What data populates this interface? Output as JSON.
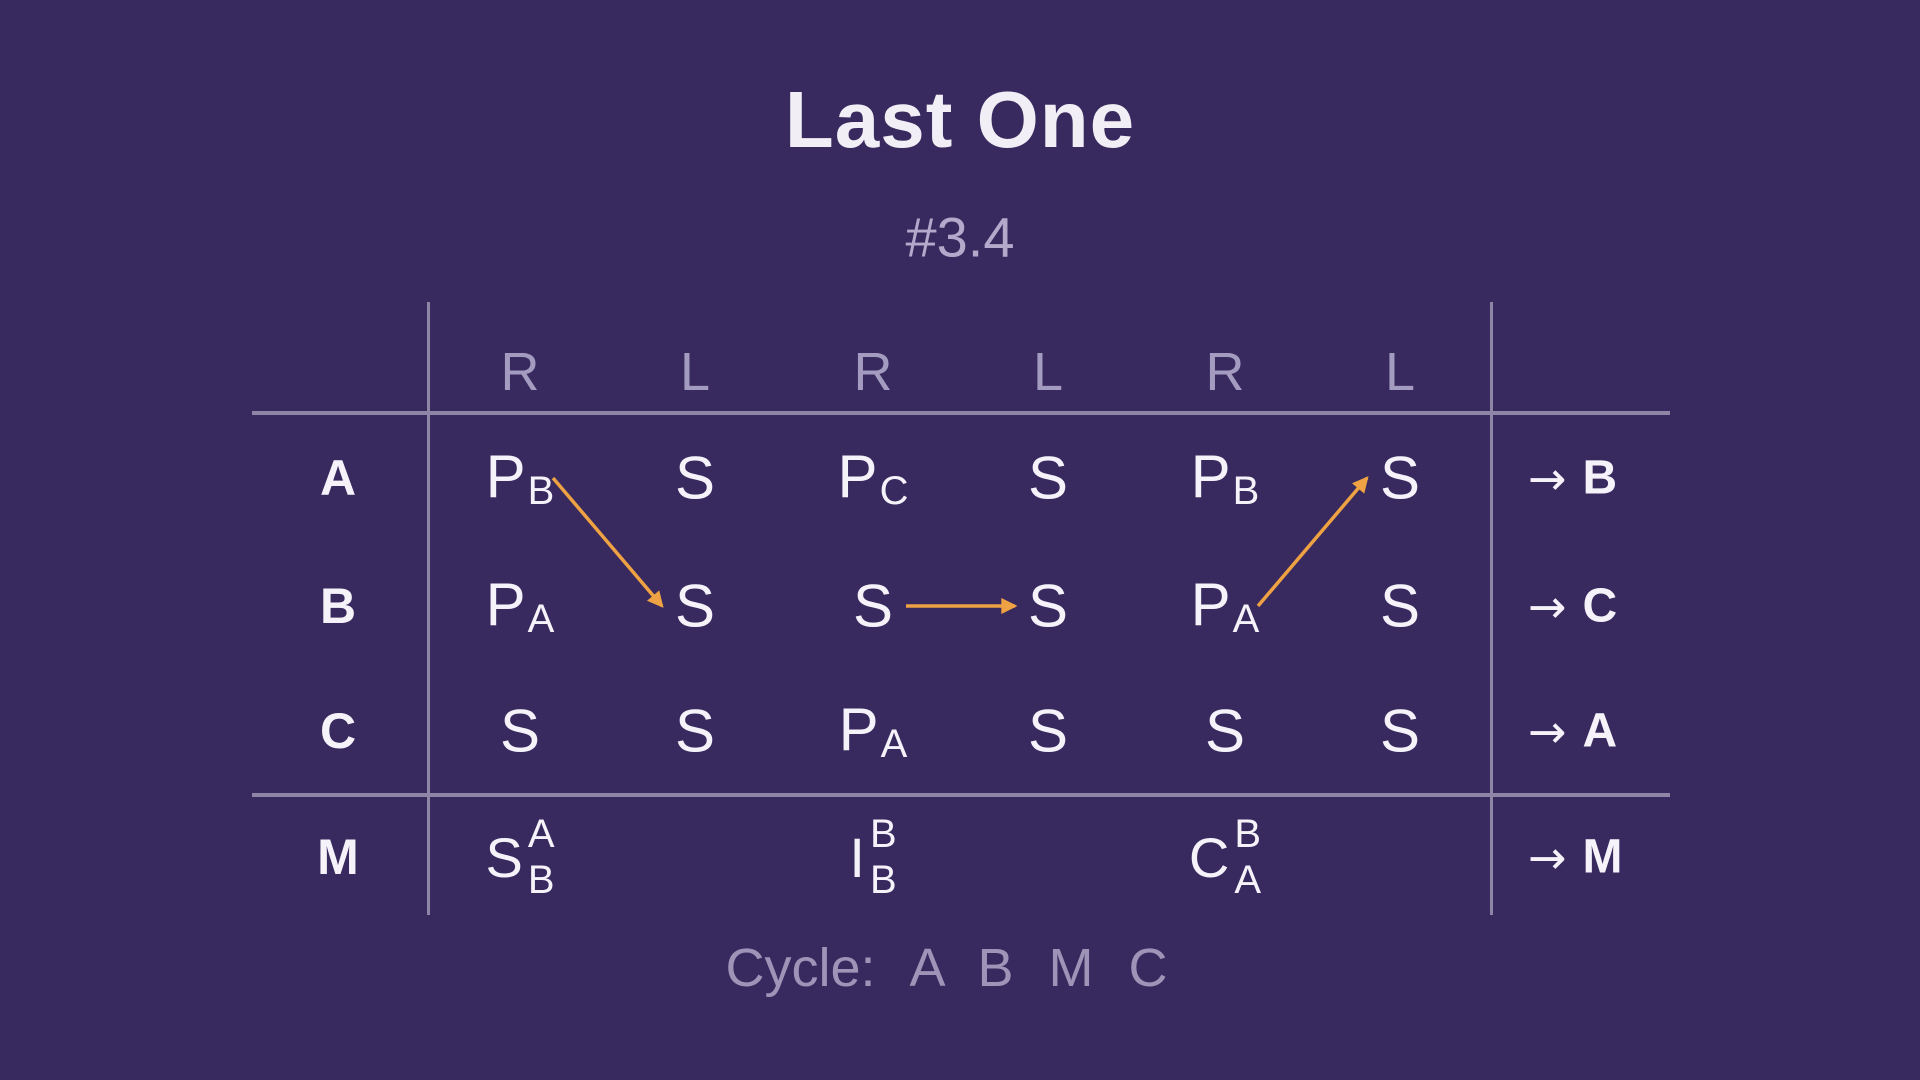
{
  "title": "Last One",
  "subtitle": "#3.4",
  "colors": {
    "background": "#382a5e",
    "grid_line": "#8e86a6",
    "muted_header": "#a49bc1",
    "subtitle": "#b3aacb",
    "text": "#f5f2fa",
    "arrow_accent": "#efa243",
    "footer_text": "#9e94b8"
  },
  "table": {
    "hand_headers": [
      "R",
      "L",
      "R",
      "L",
      "R",
      "L"
    ],
    "output_arrow": "→",
    "rows": [
      {
        "label": "A",
        "cells": [
          {
            "main": "P",
            "sub": "B"
          },
          {
            "main": "S"
          },
          {
            "main": "P",
            "sub": "C"
          },
          {
            "main": "S"
          },
          {
            "main": "P",
            "sub": "B"
          },
          {
            "main": "S"
          }
        ],
        "output": "B"
      },
      {
        "label": "B",
        "cells": [
          {
            "main": "P",
            "sub": "A"
          },
          {
            "main": "S"
          },
          {
            "main": "S"
          },
          {
            "main": "S"
          },
          {
            "main": "P",
            "sub": "A"
          },
          {
            "main": "S"
          }
        ],
        "output": "C"
      },
      {
        "label": "C",
        "cells": [
          {
            "main": "S"
          },
          {
            "main": "S"
          },
          {
            "main": "P",
            "sub": "A"
          },
          {
            "main": "S"
          },
          {
            "main": "S"
          },
          {
            "main": "S"
          }
        ],
        "output": "A"
      }
    ],
    "meta_row": {
      "label": "M",
      "cells": [
        {
          "col": 0,
          "main": "S",
          "sup": "A",
          "sub": "B"
        },
        {
          "col": 2,
          "main": "I",
          "sup": "B",
          "sub": "B"
        },
        {
          "col": 4,
          "main": "C",
          "sup": "B",
          "sub": "A"
        }
      ],
      "output": "M"
    }
  },
  "arrows": [
    {
      "from": {
        "row": "A",
        "col": 0
      },
      "to": {
        "row": "B",
        "col": 1
      }
    },
    {
      "from": {
        "row": "B",
        "col": 2
      },
      "to": {
        "row": "B",
        "col": 3
      }
    },
    {
      "from": {
        "row": "B",
        "col": 4
      },
      "to": {
        "row": "A",
        "col": 5
      }
    }
  ],
  "footer": {
    "label": "Cycle:",
    "sequence": [
      "A",
      "B",
      "M",
      "C"
    ]
  }
}
